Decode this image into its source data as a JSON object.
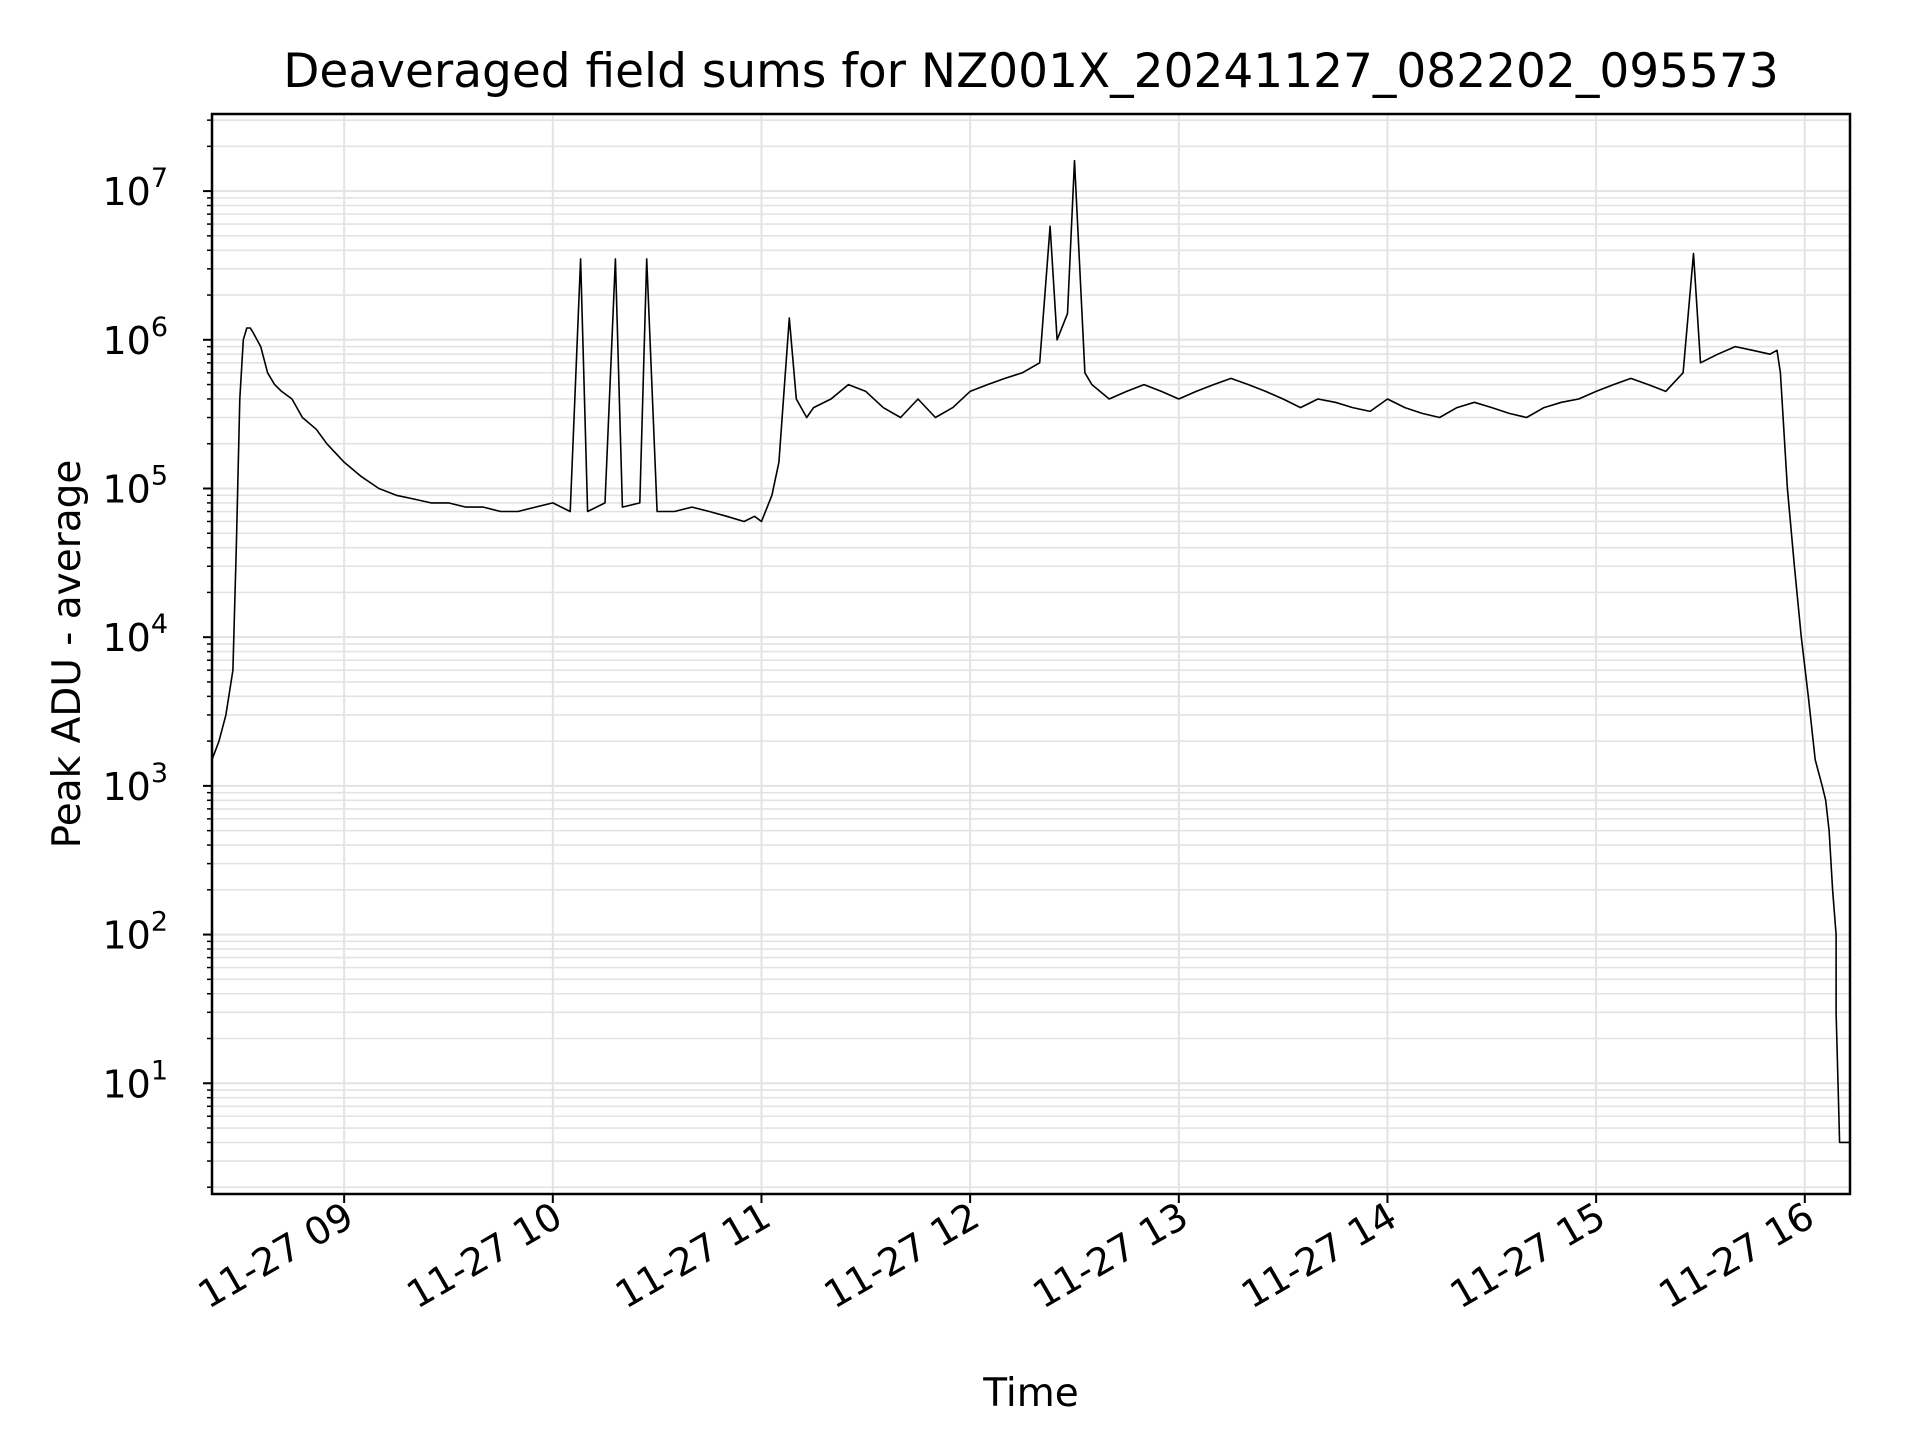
{
  "chart_data": {
    "type": "line",
    "title": "Deaveraged field sums for NZ001X_20241127_082202_095573",
    "xlabel": "Time",
    "ylabel": "Peak ADU - average",
    "yscale": "log",
    "grid": true,
    "xlim": [
      "2024-11-27 08:22",
      "2024-11-27 16:13"
    ],
    "ylim": [
      1.8,
      33000000
    ],
    "x_ticks": [
      {
        "value": "2024-11-27 09:00",
        "label": "11-27 09"
      },
      {
        "value": "2024-11-27 10:00",
        "label": "11-27 10"
      },
      {
        "value": "2024-11-27 11:00",
        "label": "11-27 11"
      },
      {
        "value": "2024-11-27 12:00",
        "label": "11-27 12"
      },
      {
        "value": "2024-11-27 13:00",
        "label": "11-27 13"
      },
      {
        "value": "2024-11-27 14:00",
        "label": "11-27 14"
      },
      {
        "value": "2024-11-27 15:00",
        "label": "11-27 15"
      },
      {
        "value": "2024-11-27 16:00",
        "label": "11-27 16"
      }
    ],
    "y_ticks": [
      {
        "value": 10,
        "base": "10",
        "exp": "1"
      },
      {
        "value": 100,
        "base": "10",
        "exp": "2"
      },
      {
        "value": 1000,
        "base": "10",
        "exp": "3"
      },
      {
        "value": 10000,
        "base": "10",
        "exp": "4"
      },
      {
        "value": 100000,
        "base": "10",
        "exp": "5"
      },
      {
        "value": 1000000,
        "base": "10",
        "exp": "6"
      },
      {
        "value": 10000000,
        "base": "10",
        "exp": "7"
      }
    ],
    "line_color": "#000000",
    "grid_color": "#e3e3e3",
    "series": [
      {
        "x": [
          "2024-11-27 08:22",
          "2024-11-27 08:24",
          "2024-11-27 08:26",
          "2024-11-27 08:28",
          "2024-11-27 08:29",
          "2024-11-27 08:30",
          "2024-11-27 08:31",
          "2024-11-27 08:32",
          "2024-11-27 08:33",
          "2024-11-27 08:34",
          "2024-11-27 08:36",
          "2024-11-27 08:38",
          "2024-11-27 08:40",
          "2024-11-27 08:42",
          "2024-11-27 08:45",
          "2024-11-27 08:48",
          "2024-11-27 08:52",
          "2024-11-27 08:55",
          "2024-11-27 09:00",
          "2024-11-27 09:05",
          "2024-11-27 09:10",
          "2024-11-27 09:15",
          "2024-11-27 09:20",
          "2024-11-27 09:25",
          "2024-11-27 09:30",
          "2024-11-27 09:35",
          "2024-11-27 09:40",
          "2024-11-27 09:45",
          "2024-11-27 09:50",
          "2024-11-27 09:55",
          "2024-11-27 10:00",
          "2024-11-27 10:05",
          "2024-11-27 10:08",
          "2024-11-27 10:10",
          "2024-11-27 10:15",
          "2024-11-27 10:18",
          "2024-11-27 10:20",
          "2024-11-27 10:25",
          "2024-11-27 10:27",
          "2024-11-27 10:30",
          "2024-11-27 10:35",
          "2024-11-27 10:40",
          "2024-11-27 10:45",
          "2024-11-27 10:50",
          "2024-11-27 10:55",
          "2024-11-27 10:58",
          "2024-11-27 11:00",
          "2024-11-27 11:03",
          "2024-11-27 11:05",
          "2024-11-27 11:08",
          "2024-11-27 11:10",
          "2024-11-27 11:13",
          "2024-11-27 11:15",
          "2024-11-27 11:20",
          "2024-11-27 11:25",
          "2024-11-27 11:30",
          "2024-11-27 11:35",
          "2024-11-27 11:40",
          "2024-11-27 11:45",
          "2024-11-27 11:50",
          "2024-11-27 11:55",
          "2024-11-27 12:00",
          "2024-11-27 12:05",
          "2024-11-27 12:10",
          "2024-11-27 12:15",
          "2024-11-27 12:20",
          "2024-11-27 12:23",
          "2024-11-27 12:25",
          "2024-11-27 12:28",
          "2024-11-27 12:30",
          "2024-11-27 12:33",
          "2024-11-27 12:35",
          "2024-11-27 12:40",
          "2024-11-27 12:45",
          "2024-11-27 12:50",
          "2024-11-27 12:55",
          "2024-11-27 13:00",
          "2024-11-27 13:05",
          "2024-11-27 13:10",
          "2024-11-27 13:15",
          "2024-11-27 13:20",
          "2024-11-27 13:25",
          "2024-11-27 13:30",
          "2024-11-27 13:35",
          "2024-11-27 13:40",
          "2024-11-27 13:45",
          "2024-11-27 13:50",
          "2024-11-27 13:55",
          "2024-11-27 14:00",
          "2024-11-27 14:05",
          "2024-11-27 14:10",
          "2024-11-27 14:15",
          "2024-11-27 14:20",
          "2024-11-27 14:25",
          "2024-11-27 14:30",
          "2024-11-27 14:35",
          "2024-11-27 14:40",
          "2024-11-27 14:45",
          "2024-11-27 14:50",
          "2024-11-27 14:55",
          "2024-11-27 15:00",
          "2024-11-27 15:05",
          "2024-11-27 15:10",
          "2024-11-27 15:15",
          "2024-11-27 15:20",
          "2024-11-27 15:25",
          "2024-11-27 15:28",
          "2024-11-27 15:30",
          "2024-11-27 15:35",
          "2024-11-27 15:40",
          "2024-11-27 15:45",
          "2024-11-27 15:50",
          "2024-11-27 15:52",
          "2024-11-27 15:53",
          "2024-11-27 15:55",
          "2024-11-27 15:57",
          "2024-11-27 15:59",
          "2024-11-27 16:01",
          "2024-11-27 16:03",
          "2024-11-27 16:05",
          "2024-11-27 16:06",
          "2024-11-27 16:07",
          "2024-11-27 16:08",
          "2024-11-27 16:09",
          "2024-11-27 16:09",
          "2024-11-27 16:10",
          "2024-11-27 16:12",
          "2024-11-27 16:13"
        ],
        "y": [
          1500,
          2000,
          3000,
          6000,
          40000,
          400000,
          1000000,
          1200000,
          1200000,
          1100000,
          900000,
          600000,
          500000,
          450000,
          400000,
          300000,
          250000,
          200000,
          150000,
          120000,
          100000,
          90000,
          85000,
          80000,
          80000,
          75000,
          75000,
          70000,
          70000,
          75000,
          80000,
          70000,
          3500000,
          70000,
          80000,
          3500000,
          75000,
          80000,
          3500000,
          70000,
          70000,
          75000,
          70000,
          65000,
          60000,
          65000,
          60000,
          90000,
          150000,
          1400000,
          400000,
          300000,
          350000,
          400000,
          500000,
          450000,
          350000,
          300000,
          400000,
          300000,
          350000,
          450000,
          500000,
          550000,
          600000,
          700000,
          5800000,
          1000000,
          1500000,
          16000000,
          600000,
          500000,
          400000,
          450000,
          500000,
          450000,
          400000,
          450000,
          500000,
          550000,
          500000,
          450000,
          400000,
          350000,
          400000,
          380000,
          350000,
          330000,
          400000,
          350000,
          320000,
          300000,
          350000,
          380000,
          350000,
          320000,
          300000,
          350000,
          380000,
          400000,
          450000,
          500000,
          550000,
          500000,
          450000,
          600000,
          3800000,
          700000,
          800000,
          900000,
          850000,
          800000,
          850000,
          600000,
          100000,
          30000,
          10000,
          4000,
          1500,
          1000,
          800,
          500,
          200,
          100,
          30,
          4,
          4,
          4
        ]
      }
    ]
  }
}
